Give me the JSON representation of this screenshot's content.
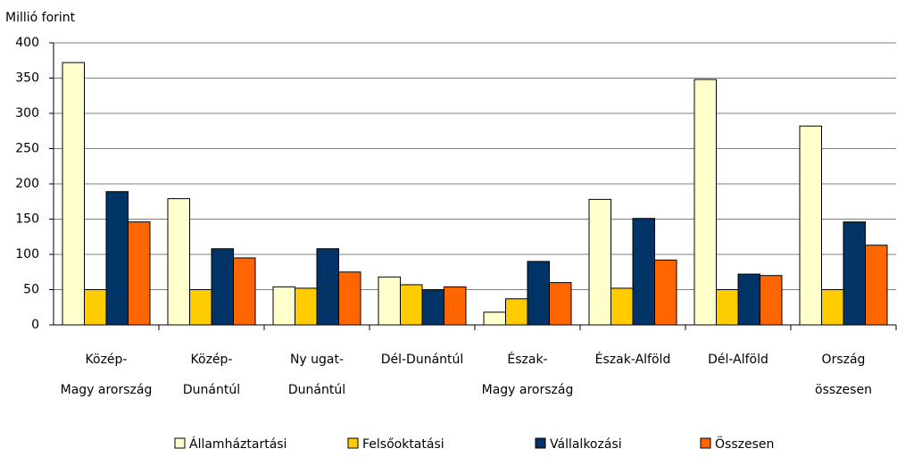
{
  "chart_data": {
    "type": "bar",
    "y_axis_label": "Millió forint",
    "categories": [
      "Közép-\nMagy arország",
      "Közép-\nDunántúl",
      "Ny ugat-\nDunántúl",
      "Dél-Dunántúl",
      "Észak-\nMagy arország",
      "Észak-Alföld",
      "Dél-Alföld",
      "Ország\nösszesen"
    ],
    "series": [
      {
        "name": "Államháztartási",
        "color": "#ffffcc",
        "values": [
          372,
          179,
          54,
          68,
          18,
          178,
          348,
          282
        ]
      },
      {
        "name": "Felsőoktatási",
        "color": "#ffcc00",
        "values": [
          50,
          50,
          52,
          57,
          37,
          52,
          50,
          50
        ]
      },
      {
        "name": "Vállalkozási",
        "color": "#003366",
        "values": [
          189,
          108,
          108,
          50,
          90,
          151,
          72,
          146
        ]
      },
      {
        "name": "Összesen",
        "color": "#ff6600",
        "values": [
          146,
          95,
          75,
          54,
          60,
          92,
          70,
          113
        ]
      }
    ],
    "ylim": [
      0,
      400
    ],
    "yticks": [
      0,
      50,
      100,
      150,
      200,
      250,
      300,
      350,
      400
    ],
    "grid": true,
    "legend": "bottom"
  }
}
